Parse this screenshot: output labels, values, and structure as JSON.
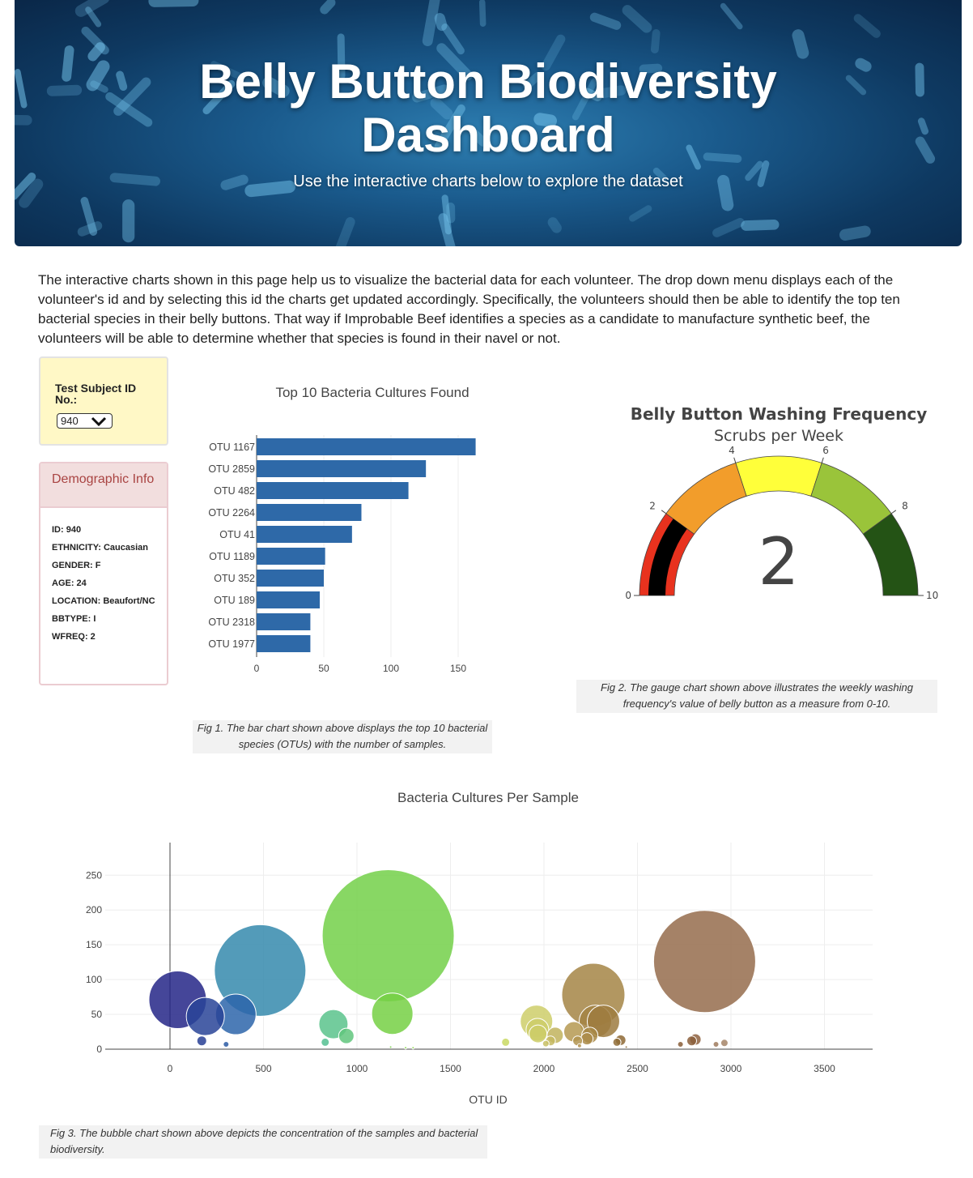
{
  "header": {
    "title_line1": "Belly Button Biodiversity",
    "title_line2": "Dashboard",
    "subtitle": "Use the interactive charts below to explore the dataset"
  },
  "intro": "The interactive charts shown in this page help us to visualize the bacterial data for each volunteer. The drop down menu displays each of the volunteer's id and by selecting this id the charts get updated accordingly. Specifically, the volunteers should then be able to identify the top ten bacterial species in their belly buttons. That way if Improbable Beef identifies a species as a candidate to manufacture synthetic beef, the volunteers will be able to determine whether that species is found in their navel or not.",
  "selector": {
    "label": "Test Subject ID No.:",
    "selected": "940",
    "icon": "chevron-down-icon"
  },
  "demographics": {
    "title": "Demographic Info",
    "lines": [
      "ID: 940",
      "ETHNICITY: Caucasian",
      "GENDER: F",
      "AGE: 24",
      "LOCATION: Beaufort/NC",
      "BBTYPE: I",
      "WFREQ: 2"
    ]
  },
  "captions": {
    "fig1": "Fig 1. The bar chart shown above displays the top 10 bacterial species (OTUs) with the number of samples.",
    "fig2": "Fig 2. The gauge chart shown above illustrates the weekly washing frequency's value of belly button as a measure from 0-10.",
    "fig3": "Fig 3. The bubble chart shown above depicts the concentration of the samples and bacterial biodiversity."
  },
  "chart_data": [
    {
      "type": "bar",
      "orientation": "horizontal",
      "title": "Top 10 Bacteria Cultures Found",
      "categories": [
        "OTU 1167",
        "OTU 2859",
        "OTU 482",
        "OTU 2264",
        "OTU 41",
        "OTU 1189",
        "OTU 352",
        "OTU 189",
        "OTU 2318",
        "OTU 1977"
      ],
      "values": [
        163,
        126,
        113,
        78,
        71,
        51,
        50,
        47,
        40,
        40
      ],
      "xticks": [
        0,
        50,
        100,
        150
      ],
      "xlim": [
        0,
        170
      ],
      "color": "#2e69a8",
      "grid": true
    },
    {
      "type": "gauge",
      "title": "Belly Button Washing Frequency",
      "subtitle": "Scrubs per Week",
      "value": 2,
      "range": [
        0,
        10
      ],
      "ticks": [
        0,
        2,
        4,
        6,
        8,
        10
      ],
      "steps": [
        {
          "range": [
            0,
            2
          ],
          "color": "#e8321e"
        },
        {
          "range": [
            2,
            4
          ],
          "color": "#f29d2b"
        },
        {
          "range": [
            4,
            6
          ],
          "color": "#ffff3a"
        },
        {
          "range": [
            6,
            8
          ],
          "color": "#9ac43a"
        },
        {
          "range": [
            8,
            10
          ],
          "color": "#245315"
        }
      ],
      "bar_color": "#000000"
    },
    {
      "type": "scatter",
      "subtype": "bubble",
      "title": "Bacteria Cultures Per Sample",
      "xlabel": "OTU ID",
      "ylabel": "",
      "xlim": [
        -350,
        3780
      ],
      "ylim": [
        -5,
        290
      ],
      "xticks": [
        0,
        500,
        1000,
        1500,
        2000,
        2500,
        3000,
        3500
      ],
      "yticks": [
        0,
        50,
        100,
        150,
        200,
        250
      ],
      "grid": true,
      "points": [
        {
          "x": 41,
          "y": 71
        },
        {
          "x": 189,
          "y": 47
        },
        {
          "x": 170,
          "y": 12
        },
        {
          "x": 300,
          "y": 7
        },
        {
          "x": 352,
          "y": 50
        },
        {
          "x": 482,
          "y": 113
        },
        {
          "x": 830,
          "y": 10
        },
        {
          "x": 874,
          "y": 36
        },
        {
          "x": 943,
          "y": 19
        },
        {
          "x": 1167,
          "y": 163
        },
        {
          "x": 1189,
          "y": 51
        },
        {
          "x": 1180,
          "y": 3
        },
        {
          "x": 1260,
          "y": 2
        },
        {
          "x": 1300,
          "y": 2
        },
        {
          "x": 1795,
          "y": 10
        },
        {
          "x": 1960,
          "y": 40
        },
        {
          "x": 1965,
          "y": 28
        },
        {
          "x": 1968,
          "y": 22
        },
        {
          "x": 2010,
          "y": 8
        },
        {
          "x": 2035,
          "y": 12
        },
        {
          "x": 2060,
          "y": 20
        },
        {
          "x": 2160,
          "y": 25
        },
        {
          "x": 2180,
          "y": 12
        },
        {
          "x": 2190,
          "y": 5
        },
        {
          "x": 2264,
          "y": 78
        },
        {
          "x": 2275,
          "y": 40
        },
        {
          "x": 2230,
          "y": 15
        },
        {
          "x": 2245,
          "y": 20
        },
        {
          "x": 2318,
          "y": 40
        },
        {
          "x": 2390,
          "y": 10
        },
        {
          "x": 2410,
          "y": 13
        },
        {
          "x": 2440,
          "y": 3
        },
        {
          "x": 2730,
          "y": 7
        },
        {
          "x": 2790,
          "y": 12
        },
        {
          "x": 2810,
          "y": 14
        },
        {
          "x": 2859,
          "y": 126
        },
        {
          "x": 2920,
          "y": 7
        },
        {
          "x": 2965,
          "y": 9
        }
      ]
    }
  ]
}
